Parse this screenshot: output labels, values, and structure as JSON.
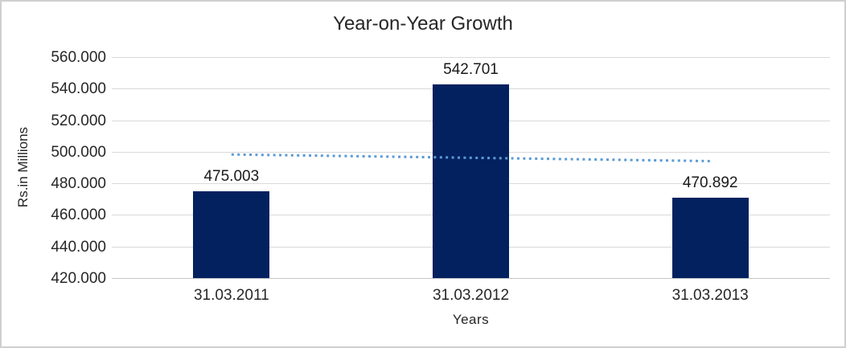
{
  "chart_data": {
    "type": "bar",
    "title": "Year-on-Year Growth",
    "xlabel": "Years",
    "ylabel": "Rs.in Millions",
    "categories": [
      "31.03.2011",
      "31.03.2012",
      "31.03.2013"
    ],
    "values": [
      475.003,
      542.701,
      470.892
    ],
    "data_labels": [
      "475.003",
      "542.701",
      "470.892"
    ],
    "ylim": [
      420,
      560
    ],
    "ytick_step": 20,
    "yticks": [
      "560.000",
      "540.000",
      "520.000",
      "500.000",
      "480.000",
      "460.000",
      "440.000",
      "420.000"
    ],
    "grid": true,
    "legend_position": "none",
    "bar_color": "#03215f",
    "gridline_color": "#d9d9d9",
    "trendline": {
      "type": "linear",
      "style": "dotted",
      "color": "#5b9bd5",
      "start_value": 498.3,
      "end_value": 494.1
    }
  }
}
